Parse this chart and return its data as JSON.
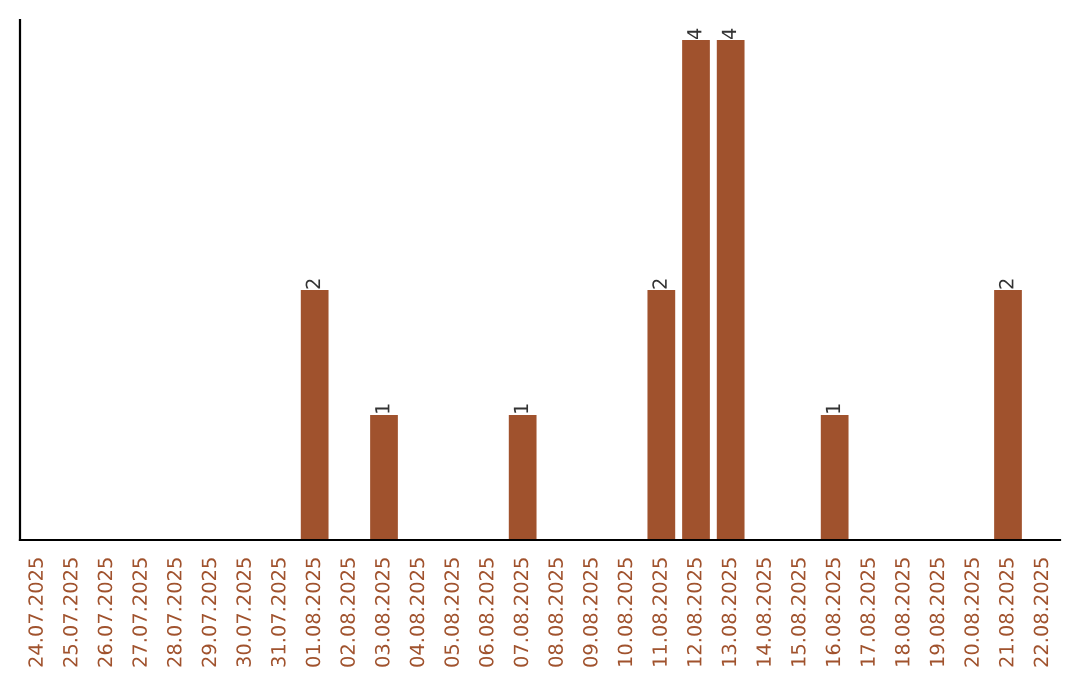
{
  "chart_data": {
    "type": "bar",
    "categories": [
      "24.07.2025",
      "25.07.2025",
      "26.07.2025",
      "27.07.2025",
      "28.07.2025",
      "29.07.2025",
      "30.07.2025",
      "31.07.2025",
      "01.08.2025",
      "02.08.2025",
      "03.08.2025",
      "04.08.2025",
      "05.08.2025",
      "06.08.2025",
      "07.08.2025",
      "08.08.2025",
      "09.08.2025",
      "10.08.2025",
      "11.08.2025",
      "12.08.2025",
      "13.08.2025",
      "14.08.2025",
      "15.08.2025",
      "16.08.2025",
      "17.08.2025",
      "18.08.2025",
      "19.08.2025",
      "20.08.2025",
      "21.08.2025",
      "22.08.2025"
    ],
    "values": [
      0,
      0,
      0,
      0,
      0,
      0,
      0,
      0,
      2,
      0,
      1,
      0,
      0,
      0,
      1,
      0,
      0,
      0,
      2,
      4,
      4,
      0,
      0,
      1,
      0,
      0,
      0,
      0,
      2,
      0
    ],
    "value_labels": [
      null,
      null,
      null,
      null,
      null,
      null,
      null,
      null,
      "2",
      null,
      "1",
      null,
      null,
      null,
      "1",
      null,
      null,
      null,
      "2",
      "4",
      "4",
      null,
      null,
      "1",
      null,
      null,
      null,
      null,
      "2",
      null
    ],
    "color": "#a0522d",
    "grid": false,
    "legend": false
  }
}
